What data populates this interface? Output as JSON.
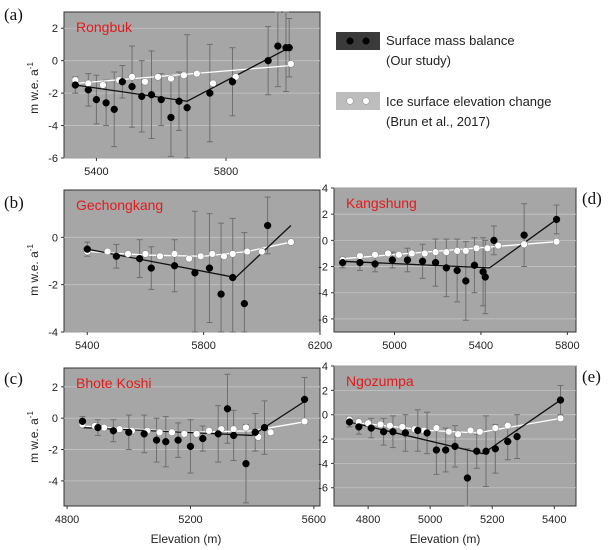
{
  "legend": {
    "entries": [
      {
        "label": "Surface mass balance",
        "sublabel": "(Our study)",
        "color": "#000000",
        "box": "#3a3a3a"
      },
      {
        "label": "Ice surface elevation change",
        "sublabel": "(Brun et al., 2017)",
        "color": "#ffffff",
        "box": "#bdbdbd"
      }
    ]
  },
  "colors": {
    "background": "#a6a6a6",
    "title": "#e31a1c",
    "smb": "#000000",
    "elev": "#ffffff",
    "errorbar": "#6f6f6f"
  },
  "chart_data": [
    {
      "id": "a",
      "panel_label": "(a)",
      "title": "Rongbuk",
      "type": "scatter",
      "xlabel": "",
      "ylabel": "m w.e. a-1",
      "xlim": [
        5300,
        6090
      ],
      "ylim": [
        -6,
        3
      ],
      "xticks": [
        5400,
        5800
      ],
      "yticks": [
        -6,
        -4,
        -2,
        0,
        2
      ],
      "grid": true,
      "smb": {
        "x": [
          5335,
          5375,
          5400,
          5430,
          5455,
          5480,
          5510,
          5540,
          5570,
          5600,
          5630,
          5655,
          5680,
          5750,
          5820,
          5930,
          5960,
          5985,
          5995
        ],
        "y": [
          -1.5,
          -1.8,
          -2.4,
          -2.6,
          -3.0,
          -1.3,
          -1.6,
          -2.2,
          -2.1,
          -2.4,
          -3.5,
          -2.5,
          -2.9,
          -2.0,
          -1.3,
          0.0,
          0.9,
          0.8,
          0.8
        ],
        "err": [
          0.5,
          1.0,
          1.5,
          1.4,
          2.3,
          1.0,
          2.5,
          2.2,
          2.7,
          1.6,
          2.4,
          1.8,
          4.5,
          3.0,
          2.1,
          2.1,
          2.5,
          2.7,
          1.8
        ],
        "fit": {
          "x": [
            5335,
            5680,
            5995
          ],
          "y": [
            -1.5,
            -2.5,
            0.8
          ]
        }
      },
      "elev": {
        "x": [
          5335,
          5375,
          5420,
          5470,
          5510,
          5550,
          5590,
          5630,
          5670,
          5710,
          5760,
          5830,
          6000
        ],
        "y": [
          -1.2,
          -1.4,
          -1.5,
          -1.2,
          -1.0,
          -1.3,
          -1.0,
          -1.1,
          -0.9,
          -0.8,
          -1.4,
          -1.0,
          -0.2
        ],
        "fit": {
          "x": [
            5335,
            6000
          ],
          "y": [
            -1.4,
            -0.3
          ]
        }
      }
    },
    {
      "id": "b",
      "panel_label": "(b)",
      "title": "Gechongkang",
      "type": "scatter",
      "xlabel": "",
      "ylabel": "m w.e. a-1",
      "xlim": [
        5320,
        6200
      ],
      "ylim": [
        -4,
        2
      ],
      "xticks": [
        5400,
        5800,
        6200
      ],
      "yticks": [
        -4,
        -2,
        0
      ],
      "grid": true,
      "smb": {
        "x": [
          5400,
          5500,
          5580,
          5620,
          5700,
          5770,
          5820,
          5860,
          5900,
          5940,
          6020
        ],
        "y": [
          -0.5,
          -0.8,
          -0.9,
          -1.3,
          -1.2,
          -1.5,
          -1.3,
          -2.4,
          -1.7,
          -2.8,
          0.5
        ],
        "err": [
          0.3,
          0.5,
          0.8,
          0.9,
          1.1,
          2.6,
          2.3,
          3.0,
          2.5,
          3.0,
          1.2
        ],
        "fit": {
          "x": [
            5400,
            5910,
            6100
          ],
          "y": [
            -0.5,
            -1.7,
            0.5
          ]
        }
      },
      "elev": {
        "x": [
          5400,
          5470,
          5540,
          5600,
          5650,
          5700,
          5750,
          5790,
          5830,
          5870,
          5900,
          5950,
          6000,
          6100
        ],
        "y": [
          -0.6,
          -0.6,
          -0.7,
          -0.7,
          -0.8,
          -0.7,
          -0.9,
          -0.8,
          -0.7,
          -0.8,
          -0.7,
          -0.6,
          -0.6,
          -0.2
        ],
        "fit": {
          "x": [
            5400,
            5600,
            5800,
            5950,
            6100
          ],
          "y": [
            -0.6,
            -0.75,
            -0.8,
            -0.6,
            -0.2
          ]
        }
      }
    },
    {
      "id": "c",
      "panel_label": "(c)",
      "title": "Bhote Koshi",
      "type": "scatter",
      "xlabel": "",
      "ylabel": "m w.e. a-1",
      "xlim": [
        4790,
        5620
      ],
      "ylim": [
        -5.6,
        3.2
      ],
      "xticks": [
        4800,
        5200,
        5600
      ],
      "yticks": [
        -4,
        -2,
        0,
        2
      ],
      "grid": true,
      "smb": {
        "x": [
          4850,
          4900,
          4950,
          5000,
          5050,
          5090,
          5120,
          5160,
          5200,
          5240,
          5290,
          5320,
          5340,
          5380,
          5410,
          5440,
          5570
        ],
        "y": [
          -0.2,
          -0.6,
          -0.8,
          -0.9,
          -1.0,
          -1.4,
          -1.5,
          -1.4,
          -1.8,
          -1.3,
          -1.0,
          0.6,
          -1.1,
          -2.9,
          -0.9,
          -0.6,
          1.2
        ],
        "err": [
          0.3,
          0.5,
          0.7,
          1.1,
          1.2,
          1.4,
          1.6,
          1.1,
          1.7,
          0.8,
          1.8,
          2.2,
          1.6,
          2.5,
          1.2,
          1.7,
          1.4
        ],
        "fit": {
          "x": [
            4850,
            5400,
            5580
          ],
          "y": [
            -0.6,
            -1.1,
            1.2
          ]
        }
      },
      "elev": {
        "x": [
          4850,
          4890,
          4920,
          4970,
          5010,
          5060,
          5100,
          5140,
          5180,
          5220,
          5260,
          5300,
          5340,
          5380,
          5420,
          5460,
          5570
        ],
        "y": [
          -0.4,
          -0.5,
          -0.6,
          -0.7,
          -0.8,
          -0.8,
          -0.9,
          -0.9,
          -1.0,
          -1.0,
          -0.8,
          -0.7,
          -0.7,
          -0.6,
          -1.2,
          -0.9,
          -0.2
        ],
        "fit": {
          "x": [
            4850,
            5200,
            5400,
            5580
          ],
          "y": [
            -0.5,
            -0.9,
            -0.8,
            -0.2
          ]
        }
      }
    },
    {
      "id": "d",
      "panel_label": "(d)",
      "title": "Kangshung",
      "type": "scatter",
      "xlabel": "",
      "ylabel": "",
      "xlim": [
        4720,
        5840
      ],
      "ylim": [
        -7,
        4
      ],
      "xticks": [
        5000,
        5400,
        5800
      ],
      "yticks": [
        -6,
        -4,
        -2,
        0,
        2,
        4
      ],
      "grid": true,
      "smb": {
        "x": [
          4760,
          4840,
          4910,
          4990,
          5060,
          5130,
          5190,
          5240,
          5290,
          5330,
          5370,
          5410,
          5420,
          5460,
          5600,
          5750
        ],
        "y": [
          -1.7,
          -1.7,
          -1.8,
          -1.5,
          -1.5,
          -1.6,
          -1.7,
          -2.1,
          -2.3,
          -3.1,
          -1.9,
          -2.4,
          -2.8,
          0.0,
          0.4,
          1.6
        ],
        "err": [
          0.4,
          0.6,
          0.6,
          0.6,
          0.9,
          1.3,
          1.8,
          2.2,
          2.4,
          3.0,
          2.1,
          2.6,
          2.8,
          1.1,
          2.4,
          1.1
        ],
        "fit": {
          "x": [
            4760,
            5440,
            5750
          ],
          "y": [
            -1.6,
            -2.1,
            1.6
          ]
        }
      },
      "elev": {
        "x": [
          4760,
          4840,
          4910,
          4970,
          5020,
          5080,
          5140,
          5190,
          5240,
          5290,
          5330,
          5380,
          5430,
          5480,
          5600,
          5750
        ],
        "y": [
          -1.5,
          -1.2,
          -1.1,
          -1.0,
          -1.1,
          -1.0,
          -1.0,
          -0.9,
          -0.9,
          -0.8,
          -0.8,
          -0.6,
          -0.6,
          -0.4,
          -0.3,
          -0.1
        ],
        "fit": {
          "x": [
            4760,
            5750
          ],
          "y": [
            -1.4,
            -0.1
          ]
        }
      }
    },
    {
      "id": "e",
      "panel_label": "(e)",
      "title": "Ngozumpa",
      "type": "scatter",
      "xlabel": "",
      "ylabel": "",
      "xlim": [
        4690,
        5470
      ],
      "ylim": [
        -7.5,
        4
      ],
      "xticks": [
        4800,
        5000,
        5200,
        5400
      ],
      "yticks": [
        -6,
        -4,
        -2,
        0,
        2,
        4
      ],
      "grid": true,
      "smb": {
        "x": [
          4740,
          4770,
          4810,
          4850,
          4880,
          4920,
          4960,
          4990,
          5020,
          5050,
          5080,
          5120,
          5150,
          5180,
          5210,
          5250,
          5280,
          5420
        ],
        "y": [
          -0.6,
          -1.0,
          -1.1,
          -1.4,
          -1.4,
          -1.5,
          -1.3,
          -1.5,
          -2.9,
          -2.9,
          -2.6,
          -5.2,
          -3.0,
          -3.0,
          -2.8,
          -2.2,
          -1.8,
          1.2
        ],
        "err": [
          0.4,
          0.6,
          0.8,
          1.1,
          1.3,
          1.5,
          1.7,
          1.7,
          2.0,
          1.8,
          1.7,
          2.4,
          1.4,
          2.9,
          2.0,
          1.5,
          1.8,
          1.2
        ],
        "fit": {
          "x": [
            4740,
            5170,
            5420
          ],
          "y": [
            -0.6,
            -3.2,
            1.2
          ]
        }
      },
      "elev": {
        "x": [
          4740,
          4770,
          4800,
          4840,
          4870,
          4910,
          4950,
          4980,
          5020,
          5060,
          5090,
          5130,
          5160,
          5210,
          5250,
          5420
        ],
        "y": [
          -0.4,
          -0.6,
          -0.7,
          -0.8,
          -0.9,
          -1.0,
          -1.2,
          -1.3,
          -1.1,
          -1.4,
          -1.6,
          -1.3,
          -1.4,
          -1.1,
          -0.9,
          -0.3
        ],
        "fit": {
          "x": [
            4740,
            5000,
            5150,
            5420
          ],
          "y": [
            -0.6,
            -1.3,
            -1.5,
            -0.3
          ]
        }
      }
    }
  ],
  "panel_labels": {
    "a": "(a)",
    "b": "(b)",
    "c": "(c)",
    "d": "(d)",
    "e": "(e)"
  },
  "axes_text": {
    "ylabel_main": "m w.e. a",
    "ylabel_sup": "-1",
    "xlabel": "Elevation (m)"
  }
}
